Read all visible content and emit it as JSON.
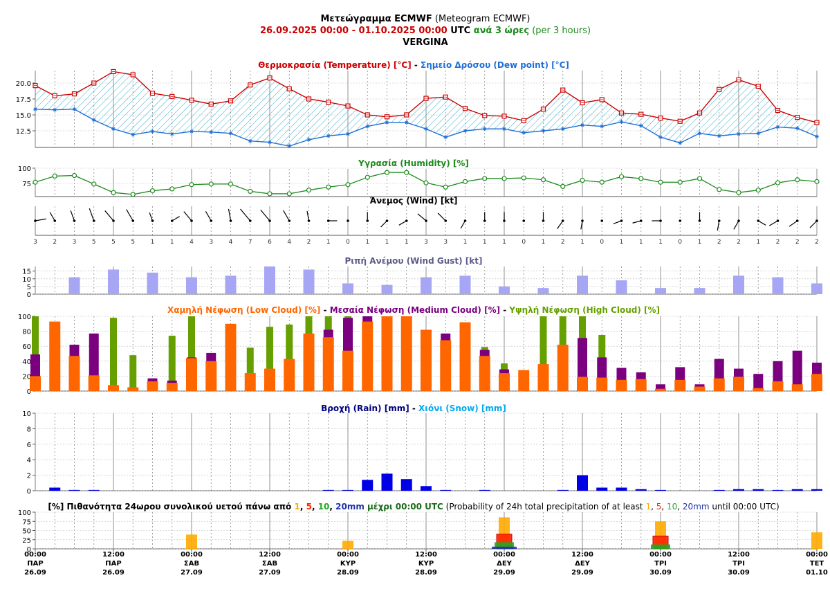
{
  "header": {
    "line1_bold": "Μετεώγραμμα ECMWF",
    "line1_normal": " (Meteogram ECMWF)",
    "line2_range": "26.09.2025 00:00 - 01.10.2025 00:00",
    "line2_utc": " UTC ",
    "line2_step": "ανά 3 ώρες",
    "line2_step_en": " (per 3 hours)",
    "location": "VERGINA"
  },
  "colors": {
    "temperature": "#cc0000",
    "dewpoint": "#1f6fd6",
    "humidity": "#1a8a1a",
    "gust": "#a6a6f5",
    "low_cloud": "#ff6600",
    "medium_cloud": "#7a0080",
    "high_cloud": "#66a000",
    "rain": "#0000e6",
    "snow": "#00aaee",
    "prob1": "#ffaa00",
    "prob5": "#ff2200",
    "prob10": "#22aa22",
    "prob20": "#2233aa"
  },
  "panels": {
    "temp": {
      "title_a": "Θερμοκρασία (Temperature) [°C]",
      "sep": " - ",
      "title_b": "Σημείο Δρόσου (Dew point) [°C]",
      "yticks": [
        "20.0",
        "17.5",
        "15.0",
        "12.5"
      ]
    },
    "humidity": {
      "title": "Υγρασία (Humidity) [%]",
      "yticks": [
        "100",
        "75"
      ]
    },
    "wind": {
      "title": "Άνεμος (Wind) [kt]"
    },
    "gust": {
      "title": "Ριπή Ανέμου (Wind Gust) [kt]",
      "yticks": [
        "15",
        "10",
        "5",
        "0"
      ]
    },
    "cloud": {
      "title_low": "Χαμηλή Νέφωση (Low Cloud) [%]",
      "title_mid": "Μεσαία Νέφωση (Medium Cloud) [%]",
      "title_high": "Υψηλή Νέφωση (High Cloud) [%]",
      "sep": " - ",
      "yticks": [
        "100",
        "80",
        "60",
        "40",
        "20",
        "0"
      ]
    },
    "rain": {
      "title_rain": "Βροχή (Rain) [mm]",
      "sep": " - ",
      "title_snow": "Χιόνι (Snow) [mm]",
      "yticks": [
        "10",
        "8",
        "6",
        "4",
        "2",
        "0"
      ]
    },
    "prob": {
      "prefix": "[%] Πιθανότητα 24ωρου συνολικού υετού πάνω από ",
      "t1": "1",
      "c1": ", ",
      "t5": "5",
      "c2": ", ",
      "t10": "10",
      "c3": ", ",
      "t20": "20mm",
      "mid": " μέχρι 00:00 UTC",
      "en_prefix": " (Probability of 24h total precipitation of at least ",
      "e1": "1",
      "ec1": ", ",
      "e5": "5",
      "ec2": ", ",
      "e10": "10",
      "ec3": ", ",
      "e20": "20mm",
      "en_suffix": " until 00:00 UTC)",
      "yticks": [
        "100",
        "75",
        "50",
        "25",
        "0"
      ]
    }
  },
  "x_axis": [
    {
      "time": "00:00",
      "day": "ΠΑΡ",
      "date": "26.09"
    },
    {
      "time": "12:00",
      "day": "ΠΑΡ",
      "date": "26.09"
    },
    {
      "time": "00:00",
      "day": "ΣΑΒ",
      "date": "27.09"
    },
    {
      "time": "12:00",
      "day": "ΣΑΒ",
      "date": "27.09"
    },
    {
      "time": "00:00",
      "day": "ΚΥΡ",
      "date": "28.09"
    },
    {
      "time": "12:00",
      "day": "ΚΥΡ",
      "date": "28.09"
    },
    {
      "time": "00:00",
      "day": "ΔΕΥ",
      "date": "29.09"
    },
    {
      "time": "12:00",
      "day": "ΔΕΥ",
      "date": "29.09"
    },
    {
      "time": "00:00",
      "day": "ΤΡΙ",
      "date": "30.09"
    },
    {
      "time": "12:00",
      "day": "ΤΡΙ",
      "date": "30.09"
    },
    {
      "time": "00:00",
      "day": "ΤΕΤ",
      "date": "01.10"
    }
  ],
  "chart_data": [
    {
      "type": "line",
      "title": "Θερμοκρασία (Temperature) [°C] - Σημείο Δρόσου (Dew point) [°C]",
      "x_step_hours": 3,
      "series": [
        {
          "name": "Θερμοκρασία (Temperature) [°C]",
          "values": [
            19.6,
            18.0,
            18.3,
            20.0,
            21.8,
            21.3,
            18.4,
            17.9,
            17.3,
            16.7,
            17.2,
            19.7,
            20.8,
            19.1,
            17.5,
            17.0,
            16.4,
            15.0,
            14.7,
            15.0,
            17.6,
            17.8,
            16.0,
            14.9,
            14.8,
            14.1,
            15.9,
            18.9,
            16.9,
            17.4,
            15.3,
            15.1,
            14.5,
            14.0,
            15.3,
            19.0,
            20.5,
            19.5,
            15.7,
            14.6,
            13.8
          ]
        },
        {
          "name": "Σημείο Δρόσου (Dew point) [°C]",
          "values": [
            15.9,
            15.8,
            15.9,
            14.2,
            12.8,
            11.9,
            12.4,
            12.0,
            12.4,
            12.3,
            12.1,
            10.9,
            10.7,
            10.1,
            11.1,
            11.7,
            12.0,
            13.2,
            13.8,
            13.8,
            12.8,
            11.5,
            12.5,
            12.8,
            12.8,
            12.2,
            12.5,
            12.8,
            13.4,
            13.2,
            13.9,
            13.3,
            11.5,
            10.6,
            12.1,
            11.7,
            12.0,
            12.1,
            13.1,
            12.9,
            11.6
          ]
        }
      ],
      "yticks": [
        12.5,
        15.0,
        17.5,
        20.0
      ]
    },
    {
      "type": "line",
      "title": "Υγρασία (Humidity) [%]",
      "x_step_hours": 3,
      "series": [
        {
          "name": "Υγρασία (Humidity) [%]",
          "values": [
            77,
            87,
            88,
            74,
            60,
            57,
            63,
            66,
            73,
            74,
            74,
            62,
            58,
            58,
            64,
            69,
            73,
            85,
            93,
            93,
            76,
            69,
            78,
            83,
            83,
            84,
            81,
            70,
            80,
            77,
            86,
            83,
            77,
            77,
            83,
            65,
            60,
            64,
            76,
            81,
            78
          ]
        }
      ],
      "ylim": [
        50,
        100
      ]
    },
    {
      "type": "table",
      "title": "Άνεμος (Wind) [kt]",
      "x_step_hours": 3,
      "speed": [
        3,
        2,
        3,
        5,
        5,
        5,
        1,
        1,
        4,
        3,
        4,
        7,
        6,
        4,
        2,
        1,
        0,
        1,
        1,
        1,
        3,
        3,
        1,
        1,
        1,
        0,
        1,
        2,
        1,
        0,
        1,
        1,
        1,
        0,
        1,
        2,
        2,
        1,
        2,
        2,
        2
      ],
      "direction_deg": [
        80,
        330,
        340,
        340,
        320,
        330,
        340,
        60,
        320,
        330,
        350,
        320,
        320,
        330,
        350,
        90,
        0,
        0,
        225,
        240,
        310,
        315,
        210,
        0,
        0,
        0,
        0,
        215,
        190,
        0,
        250,
        255,
        270,
        0,
        0,
        190,
        210,
        120,
        240,
        235,
        225
      ]
    },
    {
      "type": "bar",
      "title": "Ριπή Ανέμου (Wind Gust) [kt]",
      "x_step_hours": 6,
      "x_offset_hours": 6,
      "values": [
        11,
        16,
        14,
        11,
        12,
        18,
        16,
        7,
        6,
        11,
        12,
        5,
        4,
        12,
        9,
        4,
        4,
        12,
        11,
        7
      ],
      "ylim": [
        0,
        18
      ]
    },
    {
      "type": "bar",
      "title": "Χαμηλή Νέφωση (Low Cloud) [%] - Μεσαία Νέφωση (Medium Cloud) [%] - Υψηλή Νέφωση (High Cloud) [%]",
      "x_step_hours": 3,
      "series": [
        {
          "name": "Χαμηλή Νέφωση (Low Cloud) [%]",
          "values": [
            20,
            93,
            47,
            21,
            8,
            5,
            13,
            11,
            44,
            40,
            90,
            24,
            30,
            43,
            77,
            72,
            54,
            93,
            100,
            100,
            82,
            68,
            92,
            47,
            24,
            28,
            36,
            62,
            19,
            18,
            15,
            16,
            3,
            15,
            6,
            17,
            19,
            4,
            13,
            9,
            23
          ]
        },
        {
          "name": "Μεσαία Νέφωση (Medium Cloud) [%]",
          "values": [
            49,
            0,
            62,
            77,
            0,
            0,
            17,
            14,
            45,
            51,
            0,
            0,
            0,
            0,
            0,
            82,
            98,
            100,
            0,
            0,
            0,
            77,
            0,
            55,
            29,
            0,
            0,
            0,
            71,
            45,
            31,
            25,
            9,
            32,
            9,
            43,
            30,
            23,
            40,
            54,
            38
          ]
        },
        {
          "name": "Υψηλή Νέφωση (High Cloud) [%]",
          "values": [
            100,
            0,
            0,
            0,
            98,
            48,
            0,
            74,
            100,
            0,
            0,
            58,
            86,
            89,
            100,
            100,
            100,
            0,
            0,
            0,
            0,
            0,
            0,
            59,
            37,
            0,
            100,
            100,
            100,
            75,
            0,
            0,
            0,
            0,
            0,
            0,
            0,
            0,
            0,
            0,
            0
          ]
        }
      ],
      "ylim": [
        0,
        100
      ]
    },
    {
      "type": "bar",
      "title": "Βροχή (Rain) [mm] - Χιόνι (Snow) [mm]",
      "x_step_hours": 3,
      "x_offset_hours": 3,
      "series": [
        {
          "name": "Βροχή (Rain) [mm]",
          "values": [
            0,
            0.4,
            0.1,
            0.1,
            0,
            0,
            0,
            0,
            0,
            0,
            0,
            0,
            0,
            0,
            0,
            0.1,
            0.1,
            1.4,
            2.2,
            1.5,
            0.6,
            0.1,
            0,
            0.1,
            0,
            0,
            0,
            0.1,
            2.0,
            0.4,
            0.4,
            0.2,
            0.1,
            0,
            0,
            0.1,
            0.2,
            0.2,
            0.1,
            0.2,
            0.2
          ]
        },
        {
          "name": "Χιόνι (Snow) [mm]",
          "values": [
            0,
            0,
            0,
            0,
            0,
            0,
            0,
            0,
            0,
            0,
            0,
            0,
            0,
            0,
            0,
            0,
            0,
            0,
            0,
            0,
            0,
            0,
            0,
            0,
            0,
            0,
            0,
            0,
            0,
            0,
            0,
            0,
            0,
            0,
            0,
            0,
            0,
            0,
            0,
            0,
            0
          ]
        }
      ],
      "ylim": [
        0,
        10
      ]
    },
    {
      "type": "bar",
      "title": "[%] Πιθανότητα 24ωρου συνολικού υετού πάνω από 1, 5, 10, 20mm μέχρι 00:00 UTC",
      "categories": [
        "27.09",
        "28.09",
        "29.09",
        "30.09",
        "01.10"
      ],
      "series": [
        {
          "name": "1",
          "values": [
            39,
            22,
            86,
            75,
            45
          ]
        },
        {
          "name": "5",
          "values": [
            0,
            0,
            40,
            35,
            0
          ]
        },
        {
          "name": "10",
          "values": [
            0,
            0,
            18,
            12,
            0
          ]
        },
        {
          "name": "20",
          "values": [
            0,
            0,
            6,
            0,
            0
          ]
        }
      ],
      "ylim": [
        0,
        100
      ]
    }
  ]
}
